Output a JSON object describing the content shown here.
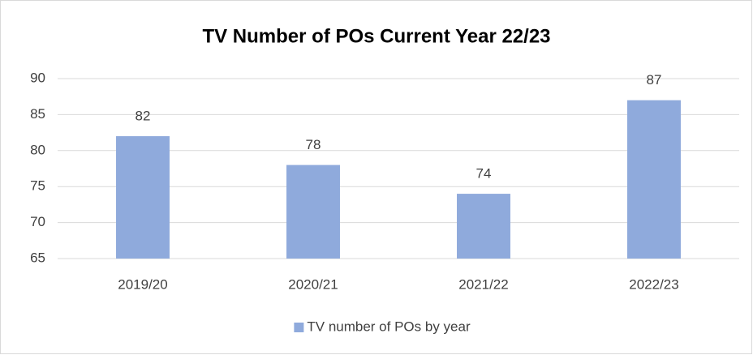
{
  "chart_data": {
    "type": "bar",
    "title": "TV Number of POs Current Year 22/23",
    "categories": [
      "2019/20",
      "2020/21",
      "2021/22",
      "2022/23"
    ],
    "series": [
      {
        "name": "TV number of POs by year",
        "color": "#8faadc",
        "values": [
          82,
          78,
          74,
          87
        ]
      }
    ],
    "ylim": [
      65,
      90
    ],
    "yticks": [
      65,
      70,
      75,
      80,
      85,
      90
    ],
    "grid": true,
    "legend": "bottom"
  }
}
